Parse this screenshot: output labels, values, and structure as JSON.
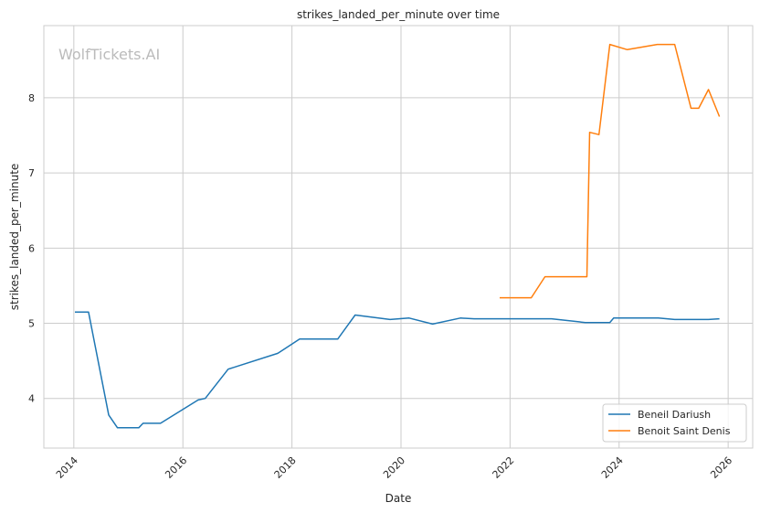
{
  "chart_data": {
    "type": "line",
    "title": "strikes_landed_per_minute over time",
    "xlabel": "Date",
    "ylabel": "strikes_landed_per_minute",
    "watermark": "WolfTickets.AI",
    "xlim": [
      2013.45,
      2026.45
    ],
    "ylim": [
      3.34,
      8.96
    ],
    "xticks": [
      2014,
      2016,
      2018,
      2020,
      2022,
      2024,
      2026
    ],
    "xtick_labels": [
      "2014",
      "2016",
      "2018",
      "2020",
      "2022",
      "2024",
      "2026"
    ],
    "yticks": [
      4,
      5,
      6,
      7,
      8
    ],
    "ytick_labels": [
      "4",
      "5",
      "6",
      "7",
      "8"
    ],
    "grid": true,
    "legend_position": "lower-right",
    "series": [
      {
        "name": "Beneil Dariush",
        "color": "#1f77b4",
        "x": [
          2014.02,
          2014.27,
          2014.64,
          2014.8,
          2015.19,
          2015.27,
          2015.59,
          2016.28,
          2016.41,
          2016.83,
          2017.74,
          2018.14,
          2018.84,
          2019.16,
          2019.8,
          2020.15,
          2020.58,
          2021.09,
          2021.34,
          2022.76,
          2023.38,
          2023.83,
          2023.9,
          2024.72,
          2025.02,
          2025.64,
          2025.84
        ],
        "y": [
          5.15,
          5.15,
          3.78,
          3.61,
          3.61,
          3.67,
          3.67,
          3.98,
          4.0,
          4.39,
          4.6,
          4.79,
          4.79,
          5.11,
          5.05,
          5.07,
          4.99,
          5.07,
          5.06,
          5.06,
          5.01,
          5.01,
          5.07,
          5.07,
          5.05,
          5.05,
          5.06
        ]
      },
      {
        "name": "Benoit Saint Denis",
        "color": "#ff7f0e",
        "x": [
          2021.81,
          2022.39,
          2022.64,
          2023.41,
          2023.46,
          2023.63,
          2023.83,
          2024.15,
          2024.7,
          2025.02,
          2025.32,
          2025.46,
          2025.64,
          2025.84
        ],
        "y": [
          5.34,
          5.34,
          5.62,
          5.62,
          7.54,
          7.51,
          8.71,
          8.64,
          8.71,
          8.71,
          7.86,
          7.86,
          8.11,
          7.75
        ]
      }
    ]
  }
}
